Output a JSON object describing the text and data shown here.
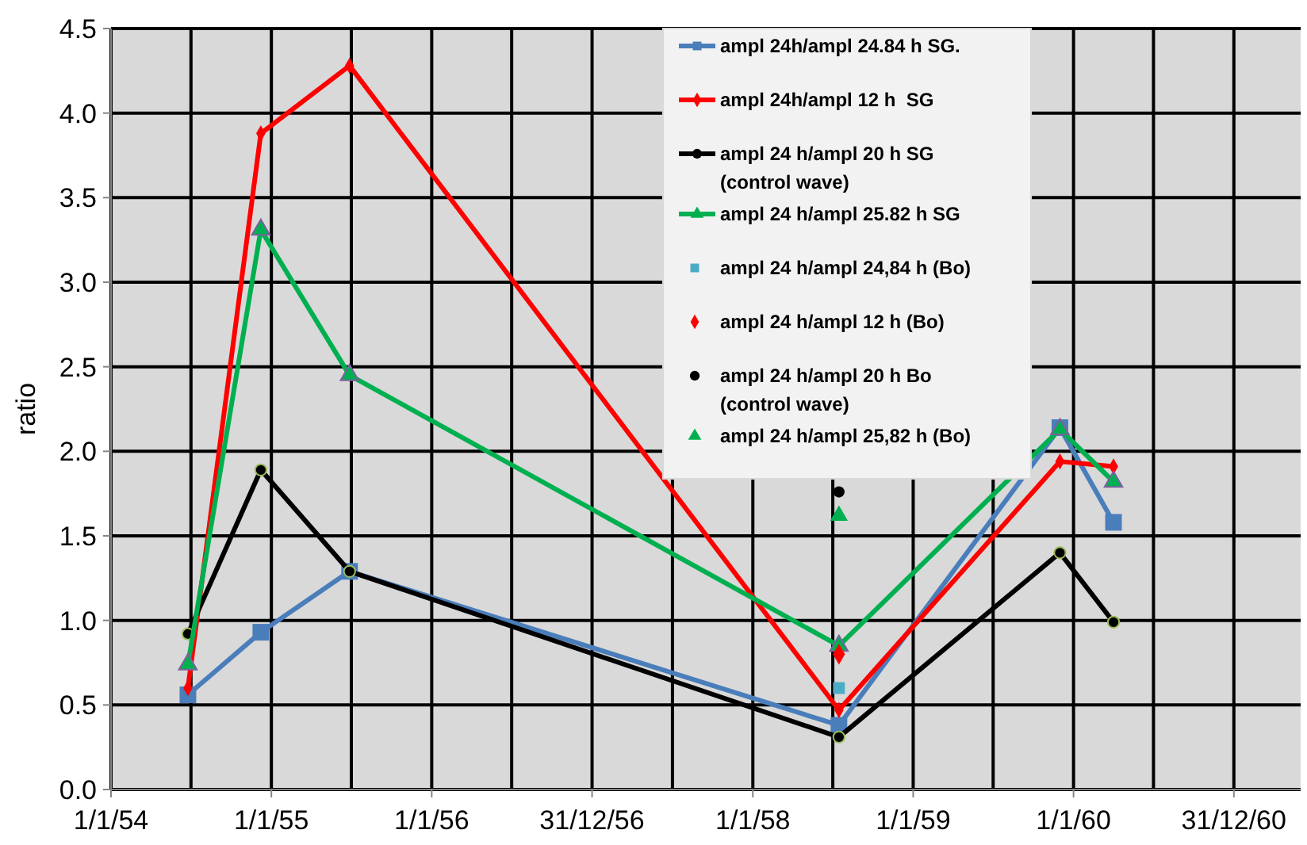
{
  "chart_data": {
    "type": "line",
    "ylabel": "ratio",
    "x": [
      "1954-06-25",
      "1954-12-08",
      "1955-06-28",
      "1958-07-16",
      "1959-12-01",
      "1960-04-01"
    ],
    "xlim": [
      "1954-01-01",
      "1961-06-01"
    ],
    "xticks": [
      {
        "value": "1954-01-01",
        "label": "1/1/54"
      },
      {
        "value": "1954-07-02",
        "label": null
      },
      {
        "value": "1955-01-01",
        "label": "1/1/55"
      },
      {
        "value": "1955-07-02",
        "label": null
      },
      {
        "value": "1956-01-01",
        "label": "1/1/56"
      },
      {
        "value": "1956-07-01",
        "label": null
      },
      {
        "value": "1956-12-31",
        "label": "31/12/56"
      },
      {
        "value": "1957-07-02",
        "label": null
      },
      {
        "value": "1958-01-01",
        "label": "1/1/58"
      },
      {
        "value": "1958-07-02",
        "label": null
      },
      {
        "value": "1959-01-01",
        "label": "1/1/59"
      },
      {
        "value": "1959-07-02",
        "label": null
      },
      {
        "value": "1960-01-01",
        "label": "1/1/60"
      },
      {
        "value": "1960-07-01",
        "label": null
      },
      {
        "value": "1960-12-31",
        "label": "31/12/60"
      }
    ],
    "ylim": [
      0,
      4.5
    ],
    "yticks": [
      {
        "value": 0,
        "label": "0.0"
      },
      {
        "value": 0.5,
        "label": "0.5"
      },
      {
        "value": 1,
        "label": "1.0"
      },
      {
        "value": 1.5,
        "label": "1.5"
      },
      {
        "value": 2,
        "label": "2.0"
      },
      {
        "value": 2.5,
        "label": "2.5"
      },
      {
        "value": 3,
        "label": "3.0"
      },
      {
        "value": 3.5,
        "label": "3.5"
      },
      {
        "value": 4,
        "label": "4.0"
      },
      {
        "value": 4.5,
        "label": "4.5"
      }
    ],
    "grid": true,
    "legend": "top right",
    "series": [
      {
        "name": "ampl 24h/ampl 24.84 h SG.",
        "color": "#4a7ebb",
        "marker": "square",
        "values": [
          0.56,
          0.93,
          1.29,
          0.38,
          2.14,
          1.58
        ]
      },
      {
        "name": "ampl 24h/ampl 12 h  SG",
        "color": "#ff0000",
        "marker": "diamond",
        "values": [
          0.6,
          3.88,
          4.28,
          0.47,
          1.94,
          1.91
        ]
      },
      {
        "name": "ampl 24 h/ampl 20 h SG (control wave)",
        "color": "#000000",
        "marker": "circle",
        "values": [
          0.92,
          1.89,
          1.29,
          0.31,
          1.4,
          0.99
        ]
      },
      {
        "name": "ampl 24 h/ampl 25.82 h SG",
        "color": "#00b050",
        "marker": "triangle",
        "values": [
          0.74,
          3.31,
          2.45,
          0.85,
          2.13,
          1.82
        ]
      },
      {
        "name": "ampl 24 h/ampl 24,84 h (Bo)",
        "type": "scatter",
        "color": "#4bacc6",
        "marker": "square",
        "x": [
          "1958-07-16"
        ],
        "values": [
          0.6
        ]
      },
      {
        "name": "ampl 24 h/ampl 12 h (Bo)",
        "type": "scatter",
        "color": "#ff0000",
        "marker": "diamond",
        "x": [
          "1958-07-16"
        ],
        "values": [
          0.8
        ]
      },
      {
        "name": "ampl 24 h/ampl 20 h Bo (control wave)",
        "type": "scatter",
        "color": "#000000",
        "marker": "circle",
        "x": [
          "1958-07-16"
        ],
        "values": [
          1.76
        ]
      },
      {
        "name": "ampl 24 h/ampl 25,82 h (Bo)",
        "type": "scatter",
        "color": "#00b050",
        "marker": "triangle",
        "x": [
          "1958-07-16"
        ],
        "values": [
          1.62
        ]
      }
    ]
  }
}
